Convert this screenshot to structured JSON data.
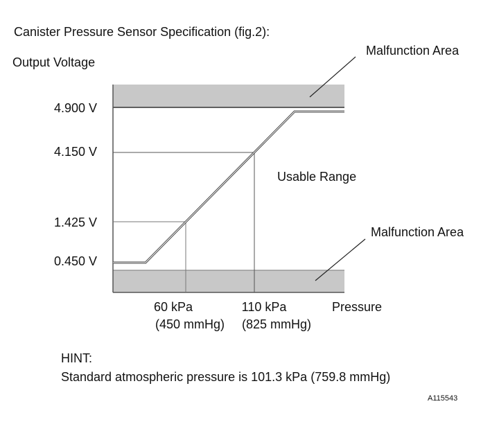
{
  "title": "Canister Pressure Sensor Specification (fig.2):",
  "y_axis_label": "Output Voltage",
  "x_axis_label": "Pressure",
  "y_labels": [
    "4.900 V",
    "4.150 V",
    "1.425 V",
    "0.450 V"
  ],
  "x_labels": [
    {
      "pressure": "60 kPa",
      "mmhg": "(450 mmHg)"
    },
    {
      "pressure": "110 kPa",
      "mmhg": "(825 mmHg)"
    }
  ],
  "regions": {
    "upper": "Malfunction Area",
    "middle": "Usable Range",
    "lower": "Malfunction Area"
  },
  "hint": {
    "heading": "HINT:",
    "text": "Standard atmospheric pressure is 101.3 kPa (759.8 mmHg)"
  },
  "figure_id": "A115543"
}
